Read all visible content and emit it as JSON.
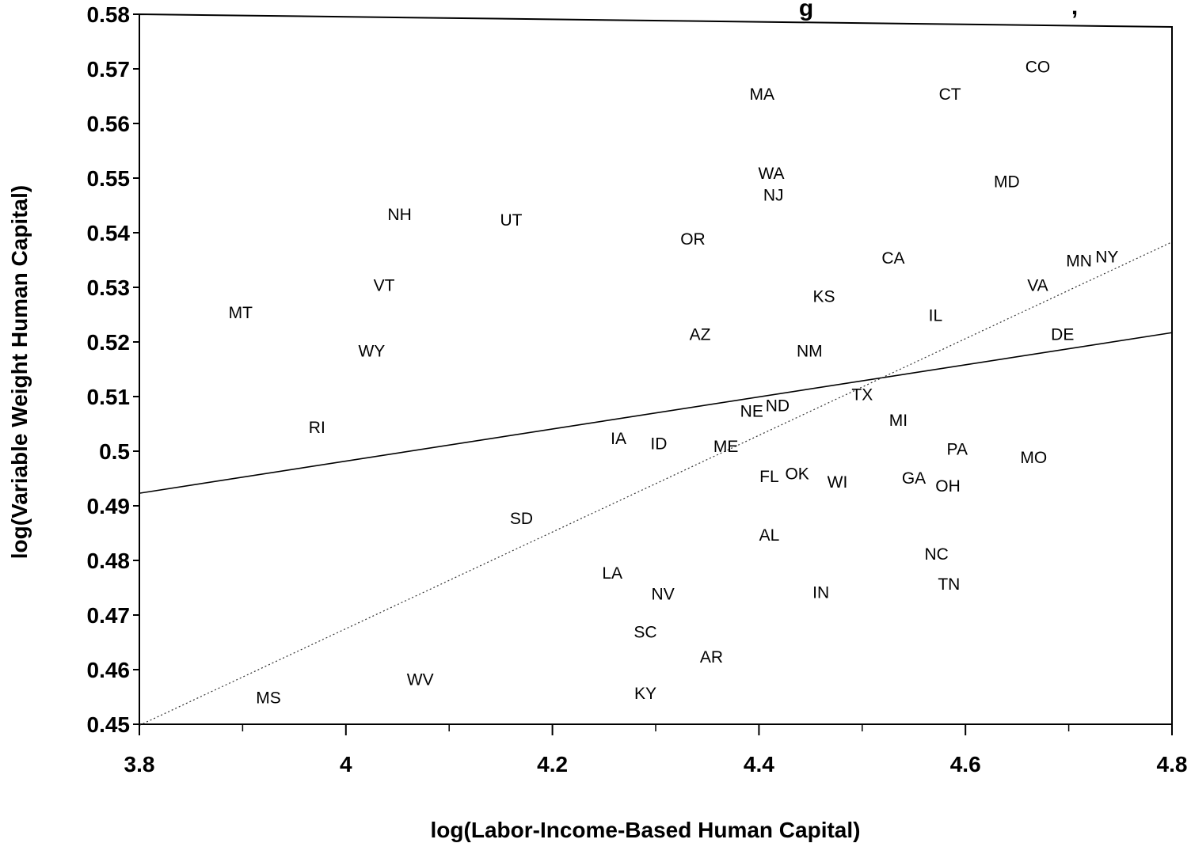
{
  "chart_data": {
    "type": "scatter",
    "title": "",
    "title_fragment": "g",
    "title_fragment2": ",",
    "xlabel": "log(Labor-Income-Based Human Capital)",
    "ylabel": "log(Variable Weight Human Capital)",
    "xlim": [
      3.8,
      4.8
    ],
    "ylim": [
      0.45,
      0.58
    ],
    "x_ticks": [
      {
        "value": 3.8,
        "label": "3.8"
      },
      {
        "value": 4.0,
        "label": "4"
      },
      {
        "value": 4.2,
        "label": "4.2"
      },
      {
        "value": 4.4,
        "label": "4.4"
      },
      {
        "value": 4.6,
        "label": "4.6"
      },
      {
        "value": 4.8,
        "label": "4.8"
      }
    ],
    "x_minor_ticks": [
      3.9,
      4.1,
      4.3,
      4.5,
      4.7
    ],
    "y_ticks": [
      {
        "value": 0.45,
        "label": "0.45"
      },
      {
        "value": 0.46,
        "label": "0.46"
      },
      {
        "value": 0.47,
        "label": "0.47"
      },
      {
        "value": 0.48,
        "label": "0.48"
      },
      {
        "value": 0.49,
        "label": "0.49"
      },
      {
        "value": 0.5,
        "label": "0.5"
      },
      {
        "value": 0.51,
        "label": "0.51"
      },
      {
        "value": 0.52,
        "label": "0.52"
      },
      {
        "value": 0.53,
        "label": "0.53"
      },
      {
        "value": 0.54,
        "label": "0.54"
      },
      {
        "value": 0.55,
        "label": "0.55"
      },
      {
        "value": 0.56,
        "label": "0.56"
      },
      {
        "value": 0.57,
        "label": "0.57"
      },
      {
        "value": 0.58,
        "label": "0.58"
      }
    ],
    "grid": false,
    "points": [
      {
        "label": "CO",
        "x": 4.67,
        "y": 0.5705
      },
      {
        "label": "MA",
        "x": 4.403,
        "y": 0.5655
      },
      {
        "label": "CT",
        "x": 4.585,
        "y": 0.5655
      },
      {
        "label": "WA",
        "x": 4.412,
        "y": 0.551
      },
      {
        "label": "MD",
        "x": 4.64,
        "y": 0.5495
      },
      {
        "label": "NJ",
        "x": 4.414,
        "y": 0.547
      },
      {
        "label": "NH",
        "x": 4.052,
        "y": 0.5435
      },
      {
        "label": "UT",
        "x": 4.16,
        "y": 0.5425
      },
      {
        "label": "OR",
        "x": 4.336,
        "y": 0.539
      },
      {
        "label": "CA",
        "x": 4.53,
        "y": 0.5355
      },
      {
        "label": "MN",
        "x": 4.71,
        "y": 0.535
      },
      {
        "label": "NY",
        "x": 4.737,
        "y": 0.5357
      },
      {
        "label": "VT",
        "x": 4.037,
        "y": 0.5305
      },
      {
        "label": "VA",
        "x": 4.67,
        "y": 0.5305
      },
      {
        "label": "KS",
        "x": 4.463,
        "y": 0.5285
      },
      {
        "label": "MT",
        "x": 3.898,
        "y": 0.5255
      },
      {
        "label": "IL",
        "x": 4.571,
        "y": 0.525
      },
      {
        "label": "AZ",
        "x": 4.343,
        "y": 0.5215
      },
      {
        "label": "DE",
        "x": 4.694,
        "y": 0.5215
      },
      {
        "label": "WY",
        "x": 4.025,
        "y": 0.5185
      },
      {
        "label": "NM",
        "x": 4.449,
        "y": 0.5185
      },
      {
        "label": "TX",
        "x": 4.5,
        "y": 0.5105
      },
      {
        "label": "NE",
        "x": 4.393,
        "y": 0.5075
      },
      {
        "label": "ND",
        "x": 4.418,
        "y": 0.5085
      },
      {
        "label": "MI",
        "x": 4.535,
        "y": 0.5058
      },
      {
        "label": "RI",
        "x": 3.972,
        "y": 0.5045
      },
      {
        "label": "IA",
        "x": 4.264,
        "y": 0.5025
      },
      {
        "label": "ID",
        "x": 4.303,
        "y": 0.5015
      },
      {
        "label": "ME",
        "x": 4.368,
        "y": 0.501
      },
      {
        "label": "PA",
        "x": 4.592,
        "y": 0.5005
      },
      {
        "label": "MO",
        "x": 4.666,
        "y": 0.499
      },
      {
        "label": "FL",
        "x": 4.41,
        "y": 0.4955
      },
      {
        "label": "OK",
        "x": 4.437,
        "y": 0.496
      },
      {
        "label": "WI",
        "x": 4.476,
        "y": 0.4945
      },
      {
        "label": "GA",
        "x": 4.55,
        "y": 0.4952
      },
      {
        "label": "OH",
        "x": 4.583,
        "y": 0.4938
      },
      {
        "label": "SD",
        "x": 4.17,
        "y": 0.4878
      },
      {
        "label": "AL",
        "x": 4.41,
        "y": 0.4848
      },
      {
        "label": "NC",
        "x": 4.572,
        "y": 0.4813
      },
      {
        "label": "LA",
        "x": 4.258,
        "y": 0.4778
      },
      {
        "label": "TN",
        "x": 4.584,
        "y": 0.4758
      },
      {
        "label": "NV",
        "x": 4.307,
        "y": 0.474
      },
      {
        "label": "IN",
        "x": 4.46,
        "y": 0.4743
      },
      {
        "label": "SC",
        "x": 4.29,
        "y": 0.467
      },
      {
        "label": "AR",
        "x": 4.354,
        "y": 0.4625
      },
      {
        "label": "WV",
        "x": 4.072,
        "y": 0.4583
      },
      {
        "label": "MS",
        "x": 3.925,
        "y": 0.455
      },
      {
        "label": "KY",
        "x": 4.29,
        "y": 0.4558
      }
    ],
    "lines": [
      {
        "style": "solid",
        "x": [
          3.8,
          4.8
        ],
        "y": [
          0.4923,
          0.5217
        ]
      },
      {
        "style": "dotted",
        "x": [
          3.8,
          4.8
        ],
        "y": [
          0.4498,
          0.5383
        ]
      }
    ]
  }
}
